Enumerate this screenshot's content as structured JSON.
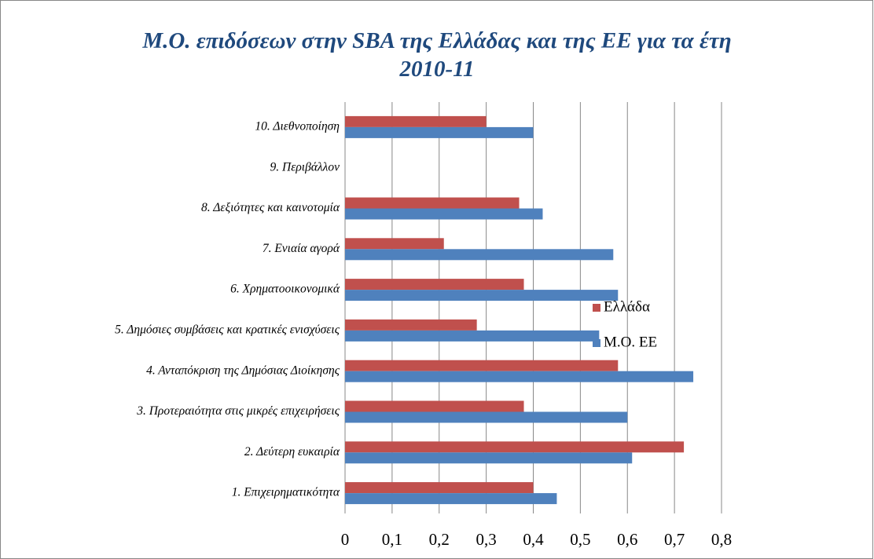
{
  "chart_data": {
    "type": "bar",
    "orientation": "horizontal",
    "title": "Μ.Ο. επιδόσεων στην SBA της Ελλάδας και της ΕΕ για τα έτη 2010-11",
    "categories": [
      "1. Επιχειρηματικότητα",
      "2. Δεύτερη ευκαιρία",
      "3. Προτεραιότητα στις μικρές επιχειρήσεις",
      "4. Ανταπόκριση της Δημόσιας Διοίκησης",
      "5. Δημόσιες συμβάσεις και κρατικές ενισχύσεις",
      "6. Χρηματοοικονομικά",
      "7. Ενιαία αγορά",
      "8. Δεξιότητες και καινοτομία",
      "9. Περιβάλλον",
      "10. Διεθνοποίηση"
    ],
    "series": [
      {
        "name": "Ελλάδα",
        "color": "#c0504d",
        "values": [
          0.4,
          0.72,
          0.38,
          0.58,
          0.28,
          0.38,
          0.21,
          0.37,
          null,
          0.3
        ]
      },
      {
        "name": "Μ.Ο. ΕΕ",
        "color": "#4f81bd",
        "values": [
          0.45,
          0.61,
          0.6,
          0.74,
          0.54,
          0.58,
          0.57,
          0.42,
          null,
          0.4
        ]
      }
    ],
    "xlim": [
      0,
      0.8
    ],
    "xticks": [
      0,
      {
        "value": 0.1,
        "label": "0,1"
      },
      {
        "value": 0.2,
        "label": "0,2"
      },
      {
        "value": 0.3,
        "label": "0,3"
      },
      {
        "value": 0.4,
        "label": "0,4"
      },
      {
        "value": 0.5,
        "label": "0,5"
      },
      {
        "value": 0.6,
        "label": "0,6"
      },
      {
        "value": 0.7,
        "label": "0,7"
      },
      {
        "value": 0.8,
        "label": "0,8"
      }
    ],
    "grid": true,
    "legend": "right"
  }
}
